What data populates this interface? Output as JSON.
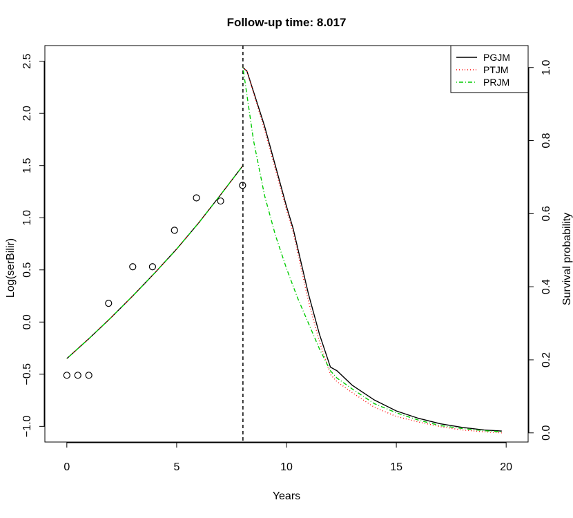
{
  "chart_data": {
    "type": "line",
    "title": "Follow-up time: 8.017",
    "xlabel": "Years",
    "ylabel_left": "Log(serBilir)",
    "ylabel_right": "Survival probability",
    "xlim": [
      -1,
      21
    ],
    "ylim_left": [
      -1.15,
      2.65
    ],
    "ylim_right": [
      -0.025,
      1.06
    ],
    "x_ticks": [
      0,
      5,
      10,
      15,
      20
    ],
    "y_left_ticks": [
      -1.0,
      -0.5,
      0.0,
      0.5,
      1.0,
      1.5,
      2.0,
      2.5
    ],
    "y_left_tick_labels": [
      "−1.0",
      "−0.5",
      "0.0",
      "0.5",
      "1.0",
      "1.5",
      "2.0",
      "2.5"
    ],
    "y_right_ticks": [
      0.0,
      0.2,
      0.4,
      0.6,
      0.8,
      1.0
    ],
    "y_right_tick_labels": [
      "0.0",
      "0.2",
      "0.4",
      "0.6",
      "0.8",
      "1.0"
    ],
    "followup_time": 8.017,
    "observations": {
      "x": [
        0.0,
        0.5,
        1.0,
        1.9,
        3.0,
        3.9,
        4.9,
        5.9,
        7.0,
        8.0
      ],
      "y": [
        -0.51,
        -0.51,
        -0.51,
        0.18,
        0.53,
        0.53,
        0.88,
        1.19,
        1.16,
        1.31
      ]
    },
    "longitudinal_fit": {
      "x": [
        0,
        1,
        2,
        3,
        4,
        5,
        6,
        7,
        8.017
      ],
      "y": [
        -0.35,
        -0.16,
        0.04,
        0.25,
        0.47,
        0.7,
        0.95,
        1.22,
        1.5
      ]
    },
    "survival_series": [
      {
        "name": "PGJM",
        "color": "#000000",
        "dash": "solid",
        "x": [
          8.017,
          8.2,
          9.0,
          10.0,
          10.3,
          11.0,
          11.5,
          12.0,
          12.3,
          13,
          14,
          15,
          16,
          17,
          18,
          19,
          19.8
        ],
        "y": [
          1.0,
          0.99,
          0.84,
          0.62,
          0.56,
          0.38,
          0.27,
          0.18,
          0.17,
          0.13,
          0.09,
          0.06,
          0.04,
          0.025,
          0.015,
          0.008,
          0.005
        ]
      },
      {
        "name": "PTJM",
        "color": "#ff0000",
        "dash": "dotted",
        "x": [
          8.017,
          8.2,
          9.0,
          10.0,
          10.3,
          11.0,
          11.5,
          12.0,
          12.3,
          13,
          14,
          15,
          16,
          17,
          18,
          19,
          19.8
        ],
        "y": [
          1.0,
          0.99,
          0.83,
          0.61,
          0.55,
          0.36,
          0.25,
          0.16,
          0.14,
          0.11,
          0.07,
          0.045,
          0.03,
          0.017,
          0.008,
          0.003,
          0.0
        ]
      },
      {
        "name": "PRJM",
        "color": "#00cc00",
        "dash": "dotdash",
        "x": [
          8.017,
          8.5,
          9.0,
          9.5,
          10.0,
          10.5,
          11.0,
          11.5,
          12.0,
          12.3,
          13,
          14,
          15,
          16,
          17,
          18,
          19,
          19.8
        ],
        "y": [
          1.0,
          0.8,
          0.65,
          0.54,
          0.45,
          0.37,
          0.3,
          0.23,
          0.17,
          0.15,
          0.12,
          0.08,
          0.055,
          0.035,
          0.02,
          0.012,
          0.006,
          0.003
        ]
      }
    ],
    "legend": {
      "position": "top-right",
      "entries": [
        "PGJM",
        "PTJM",
        "PRJM"
      ]
    }
  }
}
